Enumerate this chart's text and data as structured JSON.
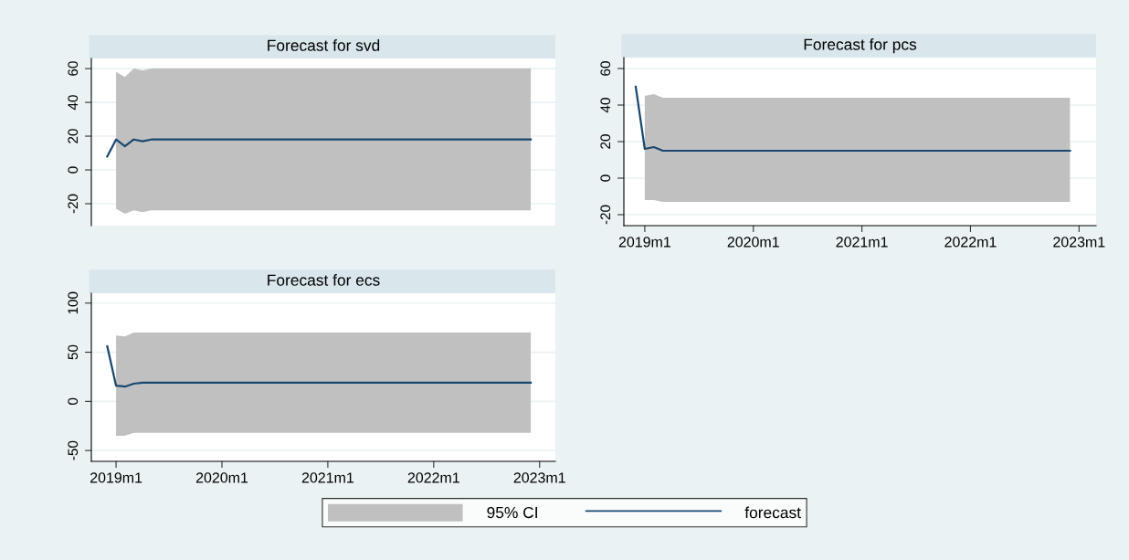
{
  "chart_data": [
    {
      "type": "line",
      "title": "Forecast for svd",
      "xlim": [
        "2018-10-07",
        "2023-02-25"
      ],
      "ylim": [
        -33,
        66
      ],
      "yticks": [
        -20,
        0,
        20,
        40,
        60
      ],
      "tick_labels": "y",
      "grid": "y",
      "series": [
        {
          "color": "#1a476f",
          "x": [
            "2018-12",
            "2019-01",
            "2019-02",
            "2019-03",
            "2019-04",
            "2019-05",
            "2022-12"
          ],
          "values": [
            8,
            18,
            14,
            18,
            17,
            18,
            18
          ],
          "lower": [
            null,
            -23,
            -26,
            -24,
            -25,
            -24,
            -24
          ],
          "upper": [
            null,
            58,
            55,
            60,
            59,
            60,
            60
          ]
        }
      ]
    },
    {
      "type": "line",
      "title": "Forecast for pcs",
      "xlim": [
        "2018-10-22",
        "2023-02-28"
      ],
      "ylim": [
        -26,
        66
      ],
      "yticks": [
        -20,
        0,
        20,
        40,
        60
      ],
      "xticks": [
        {
          "value": "2019-01",
          "label": "2019m1"
        },
        {
          "value": "2020-01",
          "label": "2020m1"
        },
        {
          "value": "2021-01",
          "label": "2021m1"
        },
        {
          "value": "2022-01",
          "label": "2022m1"
        },
        {
          "value": "2023-01",
          "label": "2023m1"
        }
      ],
      "grid": "y",
      "series": [
        {
          "color": "#1a476f",
          "x": [
            "2018-12",
            "2019-01",
            "2019-02",
            "2019-03",
            "2019-04",
            "2019-05",
            "2022-12"
          ],
          "values": [
            50,
            16,
            17,
            15,
            15,
            15,
            15
          ],
          "lower": [
            null,
            -12,
            -12,
            -13,
            -13,
            -13,
            -13
          ],
          "upper": [
            null,
            45,
            46,
            44,
            44,
            44,
            44
          ]
        }
      ]
    },
    {
      "type": "line",
      "title": "Forecast for ecs",
      "xlim": [
        "2018-10-07",
        "2023-02-25"
      ],
      "ylim": [
        -61,
        110
      ],
      "yticks": [
        -50,
        0,
        50,
        100
      ],
      "xticks": [
        {
          "value": "2019-01",
          "label": "2019m1"
        },
        {
          "value": "2020-01",
          "label": "2020m1"
        },
        {
          "value": "2021-01",
          "label": "2021m1"
        },
        {
          "value": "2022-01",
          "label": "2022m1"
        },
        {
          "value": "2023-01",
          "label": "2023m1"
        }
      ],
      "grid": "y",
      "legend": "bottom",
      "annotations": [
        "95% CI"
      ],
      "series": [
        {
          "name": "forecast",
          "color": "#1a476f",
          "x": [
            "2018-12",
            "2019-01",
            "2019-02",
            "2019-03",
            "2019-04",
            "2019-05",
            "2022-12"
          ],
          "values": [
            56,
            16,
            15,
            18,
            19,
            19,
            19
          ],
          "lower": [
            null,
            -35,
            -35,
            -32,
            -32,
            -32,
            -32
          ],
          "upper": [
            null,
            67,
            66,
            70,
            70,
            70,
            70
          ]
        }
      ]
    }
  ]
}
